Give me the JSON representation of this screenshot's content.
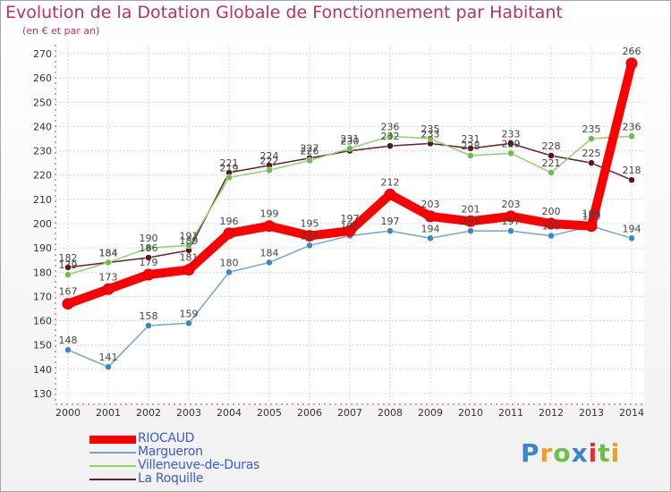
{
  "title": "Evolution de la Dotation Globale de Fonctionnement par Habitant",
  "subtitle": "(en € et par an)",
  "logo": "Proxiti",
  "chart_data": {
    "type": "line",
    "title": "Evolution de la Dotation Globale de Fonctionnement par Habitant",
    "subtitle": "(en € et par an)",
    "x": [
      2000,
      2001,
      2002,
      2003,
      2004,
      2005,
      2006,
      2007,
      2008,
      2009,
      2010,
      2011,
      2012,
      2013,
      2014
    ],
    "ylim": [
      130,
      270
    ],
    "yticks": [
      130,
      140,
      150,
      160,
      170,
      180,
      190,
      200,
      210,
      220,
      230,
      240,
      250,
      260,
      270
    ],
    "grid": true,
    "legend": "bottom-left",
    "series": [
      {
        "name": "La Roquille",
        "color": "#6b1f2a",
        "dot": "#5a1520",
        "values": [
          182,
          184,
          186,
          189,
          221,
          224,
          227,
          230,
          232,
          233,
          231,
          233,
          228,
          225,
          218
        ]
      },
      {
        "name": "Villeneuve-de-Duras",
        "color": "#8fd16a",
        "dot": "#6cc04a",
        "values": [
          179,
          184,
          190,
          191,
          219,
          222,
          226,
          231,
          236,
          235,
          228,
          229,
          221,
          235,
          236
        ]
      },
      {
        "name": "Margueron",
        "color": "#6ea6d4",
        "dot": "#3d86c6",
        "values": [
          148,
          141,
          158,
          159,
          180,
          184,
          191,
          195,
          197,
          194,
          197,
          197,
          195,
          199,
          194
        ]
      },
      {
        "name": "RIOCAUD",
        "color": "#ff0000",
        "dot": "#ff0000",
        "values": [
          167,
          173,
          179,
          181,
          196,
          199,
          195,
          197,
          212,
          203,
          201,
          203,
          200,
          199,
          266
        ]
      }
    ]
  },
  "legend_order": [
    "RIOCAUD",
    "Margueron",
    "Villeneuve-de-Duras",
    "La Roquille"
  ]
}
